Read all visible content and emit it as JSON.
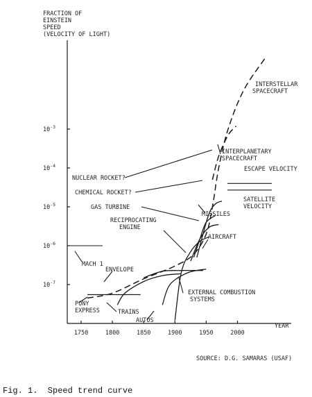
{
  "chart_data": {
    "type": "line",
    "ylabel_lines": [
      "FRACTION OF",
      "EINSTEIN",
      "SPEED",
      "(VELOCITY OF LIGHT)"
    ],
    "xlabel": "YEAR",
    "y_scale": "log",
    "xlim": [
      1750,
      2050
    ],
    "ylim": [
      1e-08,
      0.1
    ],
    "x_ticks": [
      "1750",
      "1800",
      "1850",
      "1900",
      "1950",
      "2000"
    ],
    "y_ticks": [
      {
        "label": "10^-7",
        "value": 1e-07
      },
      {
        "label": "10^-6",
        "value": 1e-06
      },
      {
        "label": "10^-5",
        "value": 1e-05
      },
      {
        "label": "10^-4",
        "value": 0.0001
      },
      {
        "label": "10^-3",
        "value": 0.001
      }
    ],
    "envelope": {
      "label": "ENVELOPE",
      "points": [
        [
          1760,
          4.5e-08
        ],
        [
          1800,
          6e-08
        ],
        [
          1850,
          1.4e-07
        ],
        [
          1900,
          3e-07
        ],
        [
          1930,
          6e-07
        ],
        [
          1950,
          2e-06
        ],
        [
          1960,
          1e-05
        ],
        [
          1970,
          0.0001
        ],
        [
          1985,
          0.001
        ],
        [
          2010,
          0.01
        ],
        [
          2045,
          0.07
        ]
      ]
    },
    "upper_branch": {
      "label": "INTERPLANETARY SPACECRAFT",
      "points": [
        [
          1960,
          5e-05
        ],
        [
          1970,
          0.0002
        ],
        [
          1985,
          0.0007
        ],
        [
          1998,
          0.0012
        ]
      ]
    },
    "interstellar_label": [
      "INTERSTELLAR",
      "SPACECRAFT"
    ],
    "curves": [
      {
        "name": "pony_express",
        "label": [
          "PONY",
          "EXPRESS"
        ],
        "points": [
          [
            1760,
            5.5e-08
          ],
          [
            1800,
            5.5e-08
          ],
          [
            1845,
            5.5e-08
          ]
        ]
      },
      {
        "name": "trains",
        "label": [
          "TRAINS"
        ],
        "points": [
          [
            1808,
            3e-08
          ],
          [
            1820,
            6e-08
          ],
          [
            1850,
            1.2e-07
          ],
          [
            1880,
            1.7e-07
          ],
          [
            1910,
            1.9e-07
          ]
        ]
      },
      {
        "name": "autos",
        "label": [
          "AUTOS"
        ],
        "points": [
          [
            1880,
            3e-08
          ],
          [
            1892,
            1e-07
          ],
          [
            1920,
            2e-07
          ],
          [
            1950,
            2.5e-07
          ]
        ]
      },
      {
        "name": "external_combustion",
        "label": [
          "EXTERNAL COMBUSTION",
          "SYSTEMS"
        ],
        "points": [
          [
            1850,
            1.5e-07
          ],
          [
            1880,
            2.2e-07
          ],
          [
            1910,
            2.3e-07
          ],
          [
            1945,
            2.3e-07
          ]
        ]
      },
      {
        "name": "reciprocating_engine",
        "label": [
          "RECIPROCATING",
          "ENGINE"
        ],
        "points": [
          [
            1900,
            1.2e-08
          ],
          [
            1910,
            2e-07
          ],
          [
            1925,
            7e-07
          ],
          [
            1940,
            1.3e-06
          ],
          [
            1955,
            1.7e-06
          ]
        ]
      },
      {
        "name": "aircraft",
        "label": [
          "AIRCRAFT"
        ],
        "points": [
          [
            1925,
            4e-07
          ],
          [
            1940,
            1.5e-06
          ],
          [
            1955,
            3e-06
          ],
          [
            1970,
            3.5e-06
          ]
        ]
      },
      {
        "name": "gas_turbine",
        "label": [
          "GAS TURBINE"
        ],
        "points": [
          [
            1930,
            5e-07
          ],
          [
            1940,
            1.5e-06
          ],
          [
            1950,
            4e-06
          ],
          [
            1965,
            6e-06
          ]
        ]
      },
      {
        "name": "missiles",
        "label": [
          "MISSILES"
        ],
        "points": [
          [
            1935,
            5e-07
          ],
          [
            1945,
            2e-06
          ],
          [
            1955,
            7e-06
          ],
          [
            1965,
            1.2e-05
          ],
          [
            1975,
            1.4e-05
          ]
        ]
      }
    ],
    "annotations": [
      {
        "text": "NUCLEAR ROCKET?"
      },
      {
        "text": "CHEMICAL ROCKET?"
      },
      {
        "text": "ESCAPE VELOCITY",
        "value": 4e-05
      },
      {
        "text": "SATELLITE VELOCITY",
        "value": 2.7e-05
      },
      {
        "text": "MACH 1",
        "value": 1e-06
      }
    ],
    "source": "SOURCE: D.G. SAMARAS (USAF)"
  },
  "caption": "Fig. 1.  Speed trend curve"
}
